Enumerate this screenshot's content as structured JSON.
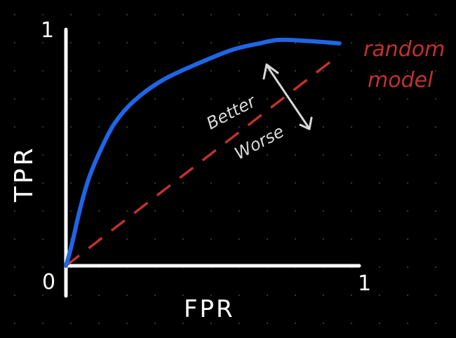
{
  "chart_data": {
    "type": "line",
    "xlabel": "FPR",
    "ylabel": "TPR",
    "xlim": [
      0,
      1
    ],
    "ylim": [
      0,
      1
    ],
    "x_ticks": [
      "0",
      "1"
    ],
    "y_ticks": [
      "1"
    ],
    "series": [
      {
        "name": "",
        "color": "#1f66e6",
        "style": "solid",
        "points": [
          [
            0.0,
            0.0
          ],
          [
            0.02,
            0.09
          ],
          [
            0.05,
            0.25
          ],
          [
            0.08,
            0.38
          ],
          [
            0.12,
            0.5
          ],
          [
            0.17,
            0.62
          ],
          [
            0.24,
            0.72
          ],
          [
            0.34,
            0.81
          ],
          [
            0.46,
            0.88
          ],
          [
            0.58,
            0.94
          ],
          [
            0.68,
            0.97
          ],
          [
            0.75,
            0.985
          ],
          [
            0.85,
            0.98
          ],
          [
            0.96,
            0.97
          ]
        ]
      },
      {
        "name": "random model",
        "color": "#c0322c",
        "style": "dashed",
        "points": [
          [
            0.0,
            0.0
          ],
          [
            0.96,
            0.92
          ]
        ]
      }
    ],
    "annotations": {
      "better": "Better",
      "worse": "Worse",
      "random_label_line1": "random",
      "random_label_line2": "model"
    },
    "colors": {
      "background": "#000000",
      "axes": "#ffffff",
      "grid_dots": "#3a3a3a",
      "roc": "#1f66e6",
      "random": "#c0322c",
      "arrow": "#d8d8d8"
    }
  }
}
